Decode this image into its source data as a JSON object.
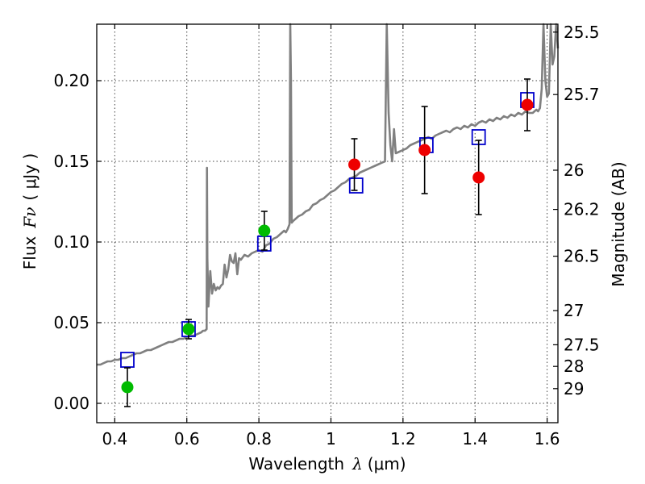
{
  "chart_data": {
    "type": "scatter",
    "xlabel": "Wavelength",
    "xlabel_symbol": "λ",
    "xlabel_unit": "(μm)",
    "ylabel": "Flux",
    "ylabel_symbol": "Fν",
    "ylabel_unit": "( μJy )",
    "y2label": "Magnitude (AB)",
    "xlim": [
      0.35,
      1.63
    ],
    "ylim": [
      -0.012,
      0.235
    ],
    "grid": true,
    "x_ticks": [
      0.4,
      0.6,
      0.8,
      1.0,
      1.2,
      1.4,
      1.6
    ],
    "x_tick_labels": [
      "0.4",
      "0.6",
      "0.8",
      "1",
      "1.2",
      "1.4",
      "1.6"
    ],
    "y_ticks": [
      0.0,
      0.05,
      0.1,
      0.15,
      0.2
    ],
    "y_tick_labels": [
      "0.00",
      "0.05",
      "0.10",
      "0.15",
      "0.20"
    ],
    "mag_ticks": [
      {
        "flux": 0.2301,
        "label": "25.5"
      },
      {
        "flux": 0.1914,
        "label": "25.7"
      },
      {
        "flux": 0.1445,
        "label": "26"
      },
      {
        "flux": 0.1202,
        "label": "26.2"
      },
      {
        "flux": 0.0912,
        "label": "26.5"
      },
      {
        "flux": 0.0575,
        "label": "27"
      },
      {
        "flux": 0.0363,
        "label": "27.5"
      },
      {
        "flux": 0.0229,
        "label": "28"
      },
      {
        "flux": 0.0091,
        "label": "29"
      }
    ],
    "colors": {
      "sed": "#808080",
      "model_box": "#0000cc",
      "green": "#00bb00",
      "red": "#ee0000",
      "errorbar": "#000000"
    },
    "sed": {
      "x": [
        0.35,
        0.36,
        0.37,
        0.38,
        0.39,
        0.4,
        0.41,
        0.42,
        0.43,
        0.44,
        0.45,
        0.46,
        0.47,
        0.48,
        0.49,
        0.5,
        0.51,
        0.52,
        0.53,
        0.54,
        0.55,
        0.56,
        0.57,
        0.58,
        0.59,
        0.6,
        0.61,
        0.62,
        0.63,
        0.64,
        0.645,
        0.65,
        0.655,
        0.656,
        0.657,
        0.66,
        0.665,
        0.67,
        0.675,
        0.68,
        0.685,
        0.69,
        0.695,
        0.7,
        0.705,
        0.71,
        0.715,
        0.72,
        0.725,
        0.73,
        0.735,
        0.74,
        0.745,
        0.75,
        0.76,
        0.77,
        0.78,
        0.79,
        0.8,
        0.81,
        0.82,
        0.83,
        0.84,
        0.85,
        0.86,
        0.87,
        0.875,
        0.88,
        0.885,
        0.887,
        0.889,
        0.891,
        0.895,
        0.9,
        0.91,
        0.92,
        0.93,
        0.94,
        0.95,
        0.96,
        0.97,
        0.98,
        0.99,
        1.0,
        1.01,
        1.02,
        1.03,
        1.04,
        1.05,
        1.06,
        1.07,
        1.08,
        1.09,
        1.1,
        1.11,
        1.12,
        1.13,
        1.14,
        1.15,
        1.155,
        1.16,
        1.165,
        1.17,
        1.175,
        1.18,
        1.19,
        1.2,
        1.21,
        1.22,
        1.23,
        1.24,
        1.25,
        1.26,
        1.27,
        1.28,
        1.29,
        1.3,
        1.31,
        1.32,
        1.33,
        1.34,
        1.35,
        1.36,
        1.37,
        1.38,
        1.39,
        1.4,
        1.41,
        1.42,
        1.43,
        1.44,
        1.45,
        1.46,
        1.47,
        1.48,
        1.49,
        1.5,
        1.51,
        1.52,
        1.53,
        1.54,
        1.55,
        1.56,
        1.57,
        1.575,
        1.58,
        1.585,
        1.59,
        1.595,
        1.6,
        1.605,
        1.61,
        1.615,
        1.62,
        1.625,
        1.63
      ],
      "y": [
        0.024,
        0.024,
        0.025,
        0.026,
        0.026,
        0.027,
        0.027,
        0.028,
        0.028,
        0.029,
        0.03,
        0.031,
        0.031,
        0.032,
        0.033,
        0.033,
        0.034,
        0.035,
        0.036,
        0.037,
        0.038,
        0.038,
        0.039,
        0.04,
        0.04,
        0.041,
        0.042,
        0.042,
        0.043,
        0.044,
        0.045,
        0.045,
        0.046,
        0.146,
        0.09,
        0.06,
        0.082,
        0.068,
        0.074,
        0.07,
        0.072,
        0.071,
        0.073,
        0.074,
        0.086,
        0.078,
        0.083,
        0.092,
        0.088,
        0.087,
        0.093,
        0.08,
        0.09,
        0.089,
        0.092,
        0.091,
        0.093,
        0.094,
        0.095,
        0.094,
        0.098,
        0.099,
        0.102,
        0.103,
        0.105,
        0.107,
        0.106,
        0.108,
        0.111,
        0.235,
        0.2,
        0.112,
        0.113,
        0.114,
        0.116,
        0.117,
        0.119,
        0.12,
        0.123,
        0.124,
        0.126,
        0.127,
        0.129,
        0.131,
        0.132,
        0.134,
        0.136,
        0.137,
        0.139,
        0.14,
        0.141,
        0.143,
        0.144,
        0.145,
        0.146,
        0.147,
        0.148,
        0.149,
        0.15,
        0.235,
        0.18,
        0.16,
        0.15,
        0.17,
        0.155,
        0.156,
        0.157,
        0.158,
        0.16,
        0.161,
        0.162,
        0.163,
        0.164,
        0.165,
        0.164,
        0.166,
        0.167,
        0.168,
        0.169,
        0.168,
        0.17,
        0.171,
        0.17,
        0.172,
        0.171,
        0.173,
        0.172,
        0.174,
        0.175,
        0.174,
        0.176,
        0.175,
        0.177,
        0.176,
        0.178,
        0.177,
        0.179,
        0.178,
        0.18,
        0.179,
        0.181,
        0.18,
        0.18,
        0.182,
        0.181,
        0.183,
        0.195,
        0.235,
        0.2,
        0.19,
        0.192,
        0.235,
        0.21,
        0.215,
        0.235,
        0.22
      ]
    },
    "model_points": [
      {
        "x": 0.435,
        "y": 0.027
      },
      {
        "x": 0.605,
        "y": 0.046
      },
      {
        "x": 0.815,
        "y": 0.099
      },
      {
        "x": 1.07,
        "y": 0.135
      },
      {
        "x": 1.265,
        "y": 0.16
      },
      {
        "x": 1.41,
        "y": 0.165
      },
      {
        "x": 1.545,
        "y": 0.188
      }
    ],
    "observed_points": [
      {
        "x": 0.435,
        "y": 0.01,
        "yerr": 0.012,
        "color": "green"
      },
      {
        "x": 0.605,
        "y": 0.046,
        "yerr": 0.006,
        "color": "green"
      },
      {
        "x": 0.815,
        "y": 0.107,
        "yerr": 0.012,
        "color": "green"
      },
      {
        "x": 1.065,
        "y": 0.148,
        "yerr": 0.016,
        "color": "red"
      },
      {
        "x": 1.26,
        "y": 0.157,
        "yerr": 0.027,
        "color": "red"
      },
      {
        "x": 1.41,
        "y": 0.14,
        "yerr": 0.023,
        "color": "red"
      },
      {
        "x": 1.545,
        "y": 0.185,
        "yerr": 0.016,
        "color": "red"
      }
    ]
  }
}
